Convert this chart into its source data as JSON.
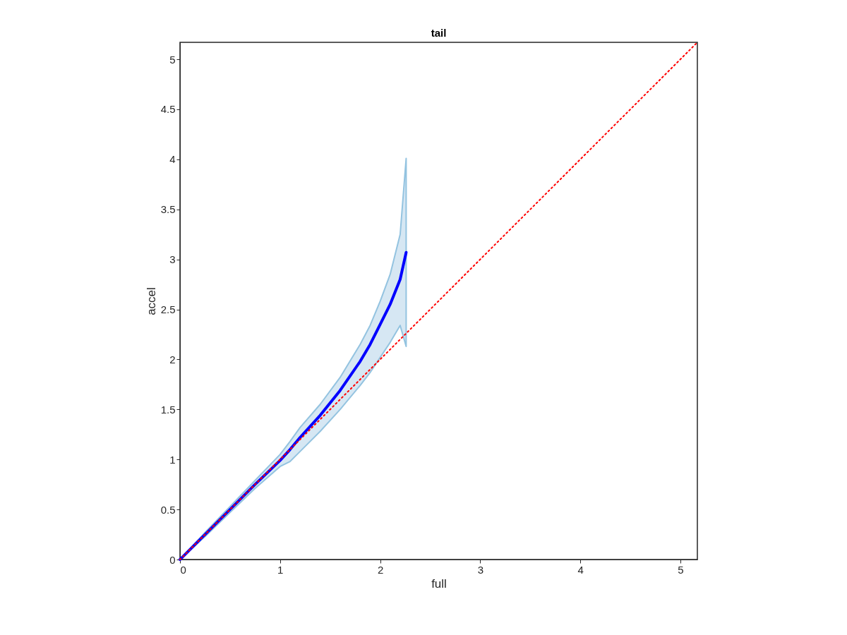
{
  "chart_data": {
    "type": "line",
    "title": "tail",
    "xlabel": "full",
    "ylabel": "accel",
    "xlim": [
      0,
      5.17
    ],
    "ylim": [
      0,
      5.17
    ],
    "xticks": [
      0,
      1,
      2,
      3,
      4,
      5
    ],
    "yticks": [
      0,
      0.5,
      1,
      1.5,
      2,
      2.5,
      3,
      3.5,
      4,
      4.5,
      5
    ],
    "grid": false,
    "marker": "none",
    "series": [
      {
        "color": "#0000ff",
        "line_style": "solid",
        "x": [
          0,
          0.25,
          0.5,
          0.75,
          1.0,
          1.1,
          1.2,
          1.4,
          1.6,
          1.8,
          1.9,
          2.0,
          2.1,
          2.2,
          2.26
        ],
        "values": [
          0,
          0.25,
          0.5,
          0.75,
          0.99,
          1.1,
          1.22,
          1.44,
          1.69,
          1.98,
          2.15,
          2.35,
          2.55,
          2.8,
          3.07
        ],
        "lower": [
          0,
          0.23,
          0.47,
          0.71,
          0.93,
          0.98,
          1.08,
          1.28,
          1.5,
          1.74,
          1.87,
          2.02,
          2.17,
          2.34,
          2.13
        ],
        "upper": [
          0,
          0.27,
          0.53,
          0.79,
          1.05,
          1.18,
          1.32,
          1.55,
          1.82,
          2.15,
          2.34,
          2.58,
          2.85,
          3.25,
          4.01
        ]
      },
      {
        "type": "line",
        "color": "#ff0000",
        "line_style": "dotted",
        "x": [
          0,
          5.17
        ],
        "values": [
          0,
          5.17
        ]
      }
    ]
  }
}
